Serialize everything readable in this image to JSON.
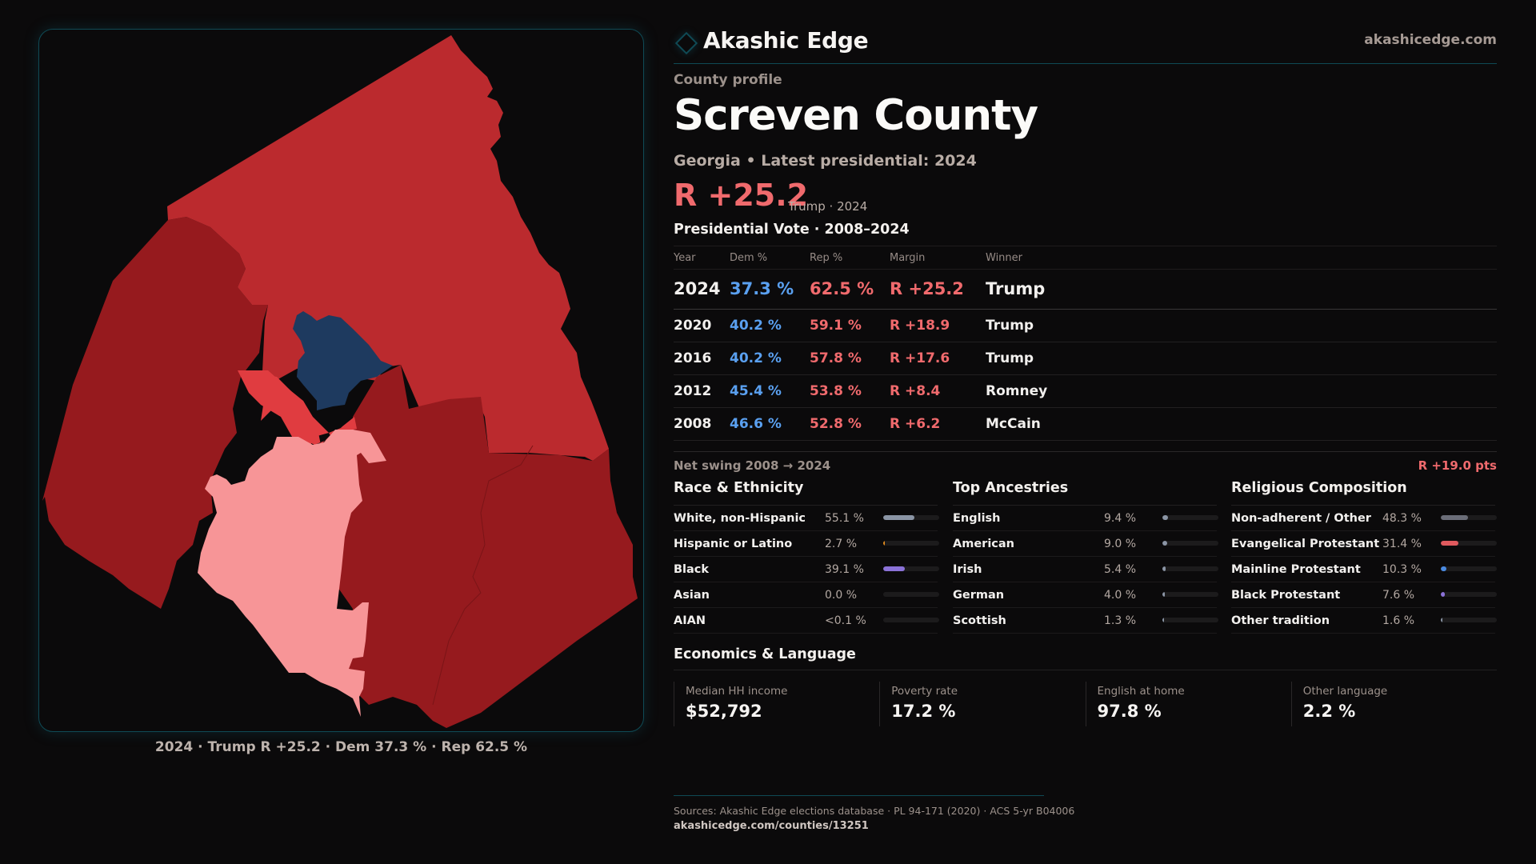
{
  "brand": {
    "name": "Akashic Edge",
    "url": "akashicedge.com"
  },
  "profile": {
    "eyebrow": "County profile",
    "title": "Screven County",
    "subtitle": "Georgia • Latest presidential: 2024",
    "headline_margin": "R +25.2",
    "headline_note": "Trump · 2024"
  },
  "vote": {
    "title": "Presidential Vote · 2008–2024",
    "headers": {
      "year": "Year",
      "dem": "Dem %",
      "rep": "Rep %",
      "margin": "Margin",
      "winner": "Winner"
    },
    "rows": [
      {
        "year": "2024",
        "dem": "37.3 %",
        "rep": "62.5 %",
        "margin": "R +25.2",
        "winner": "Trump"
      },
      {
        "year": "2020",
        "dem": "40.2 %",
        "rep": "59.1 %",
        "margin": "R +18.9",
        "winner": "Trump"
      },
      {
        "year": "2016",
        "dem": "40.2 %",
        "rep": "57.8 %",
        "margin": "R +17.6",
        "winner": "Trump"
      },
      {
        "year": "2012",
        "dem": "45.4 %",
        "rep": "53.8 %",
        "margin": "R +8.4",
        "winner": "Romney"
      },
      {
        "year": "2008",
        "dem": "46.6 %",
        "rep": "52.8 %",
        "margin": "R +6.2",
        "winner": "McCain"
      }
    ],
    "swing_label": "Net swing 2008 → 2024",
    "swing_value": "R +19.0 pts"
  },
  "race": {
    "title": "Race & Ethnicity",
    "rows": [
      {
        "label": "White, non-Hispanic",
        "value": "55.1 %",
        "pct": 55.1,
        "color": "#8b95a5"
      },
      {
        "label": "Hispanic or Latino",
        "value": "2.7 %",
        "pct": 2.7,
        "color": "#e08a1e"
      },
      {
        "label": "Black",
        "value": "39.1 %",
        "pct": 39.1,
        "color": "#8b72d8"
      },
      {
        "label": "Asian",
        "value": "0.0 %",
        "pct": 0.0,
        "color": "#5aa0f0"
      },
      {
        "label": "AIAN",
        "value": "<0.1 %",
        "pct": 0.0,
        "color": "#8b95a5"
      }
    ]
  },
  "ancestry": {
    "title": "Top Ancestries",
    "rows": [
      {
        "label": "English",
        "value": "9.4 %",
        "pct": 9.4,
        "color": "#8b95a5"
      },
      {
        "label": "American",
        "value": "9.0 %",
        "pct": 9.0,
        "color": "#8b95a5"
      },
      {
        "label": "Irish",
        "value": "5.4 %",
        "pct": 5.4,
        "color": "#8b95a5"
      },
      {
        "label": "German",
        "value": "4.0 %",
        "pct": 4.0,
        "color": "#8b95a5"
      },
      {
        "label": "Scottish",
        "value": "1.3 %",
        "pct": 1.3,
        "color": "#8b95a5"
      }
    ]
  },
  "religion": {
    "title": "Religious Composition",
    "rows": [
      {
        "label": "Non-adherent / Other",
        "value": "48.3 %",
        "pct": 48.3,
        "color": "#6b6d78"
      },
      {
        "label": "Evangelical Protestant",
        "value": "31.4 %",
        "pct": 31.4,
        "color": "#e05a5e"
      },
      {
        "label": "Mainline Protestant",
        "value": "10.3 %",
        "pct": 10.3,
        "color": "#4a8ae0"
      },
      {
        "label": "Black Protestant",
        "value": "7.6 %",
        "pct": 7.6,
        "color": "#8b72d8"
      },
      {
        "label": "Other tradition",
        "value": "1.6 %",
        "pct": 1.6,
        "color": "#8b95a5"
      }
    ]
  },
  "economics": {
    "title": "Economics & Language",
    "cells": [
      {
        "label": "Median HH income",
        "value": "$52,792"
      },
      {
        "label": "Poverty rate",
        "value": "17.2 %"
      },
      {
        "label": "English at home",
        "value": "97.8 %"
      },
      {
        "label": "Other language",
        "value": "2.2 %"
      }
    ]
  },
  "map": {
    "caption": "2024 · Trump  R +25.2 · Dem 37.3 % · Rep 62.5 %",
    "colors": {
      "strong_r": "#961a1e",
      "lean_r": "#bb2a2e",
      "tilt_r": "#e03c40",
      "light_r": "#f79597",
      "d": "#1e3a5f"
    }
  },
  "footer": {
    "sources": "Sources: Akashic Edge elections database · PL 94-171 (2020) · ACS 5-yr B04006",
    "url": "akashicedge.com/counties/13251"
  }
}
